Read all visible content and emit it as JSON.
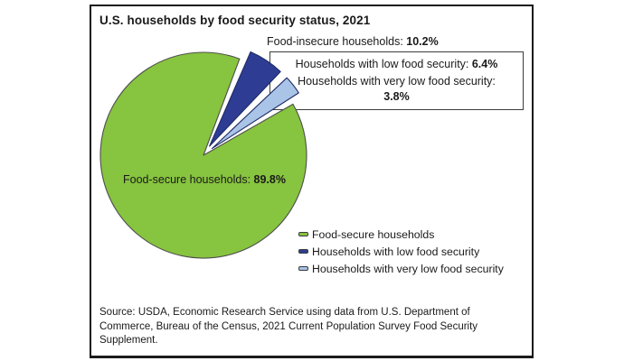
{
  "title": "U.S. households by food security status, 2021",
  "chart_data": {
    "type": "pie",
    "title": "U.S. households by food security status, 2021",
    "unit": "percent of U.S. households",
    "slices": [
      {
        "label": "Food-secure households",
        "value": 89.8,
        "color": "#87c43f",
        "border": "#4e4e4e",
        "exploded": false
      },
      {
        "label": "Households with low food security",
        "value": 6.4,
        "color": "#2e3d93",
        "border": "#1e2a66",
        "exploded": true
      },
      {
        "label": "Households with very low food security",
        "value": 3.8,
        "color": "#a9c4e6",
        "border": "#1e2a66",
        "exploded": true
      }
    ],
    "annotations": {
      "food_insecure_total_label": "Food-insecure households:",
      "food_insecure_total_value": "10.2%"
    },
    "legend_position": "below-right",
    "grid": false
  },
  "pie_label": {
    "text": "Food-secure households: ",
    "value": "89.8%"
  },
  "callout": {
    "insecure_label": "Food-insecure households: ",
    "insecure_value": "10.2%",
    "low_label": "Households with low food security: ",
    "low_value": "6.4%",
    "very_low_label": "Households with very low food security: ",
    "very_low_value": "3.8%"
  },
  "source": "Source: USDA, Economic Research Service using data from U.S. Department of Commerce, Bureau of the Census, 2021 Current Population Survey Food Security Supplement."
}
